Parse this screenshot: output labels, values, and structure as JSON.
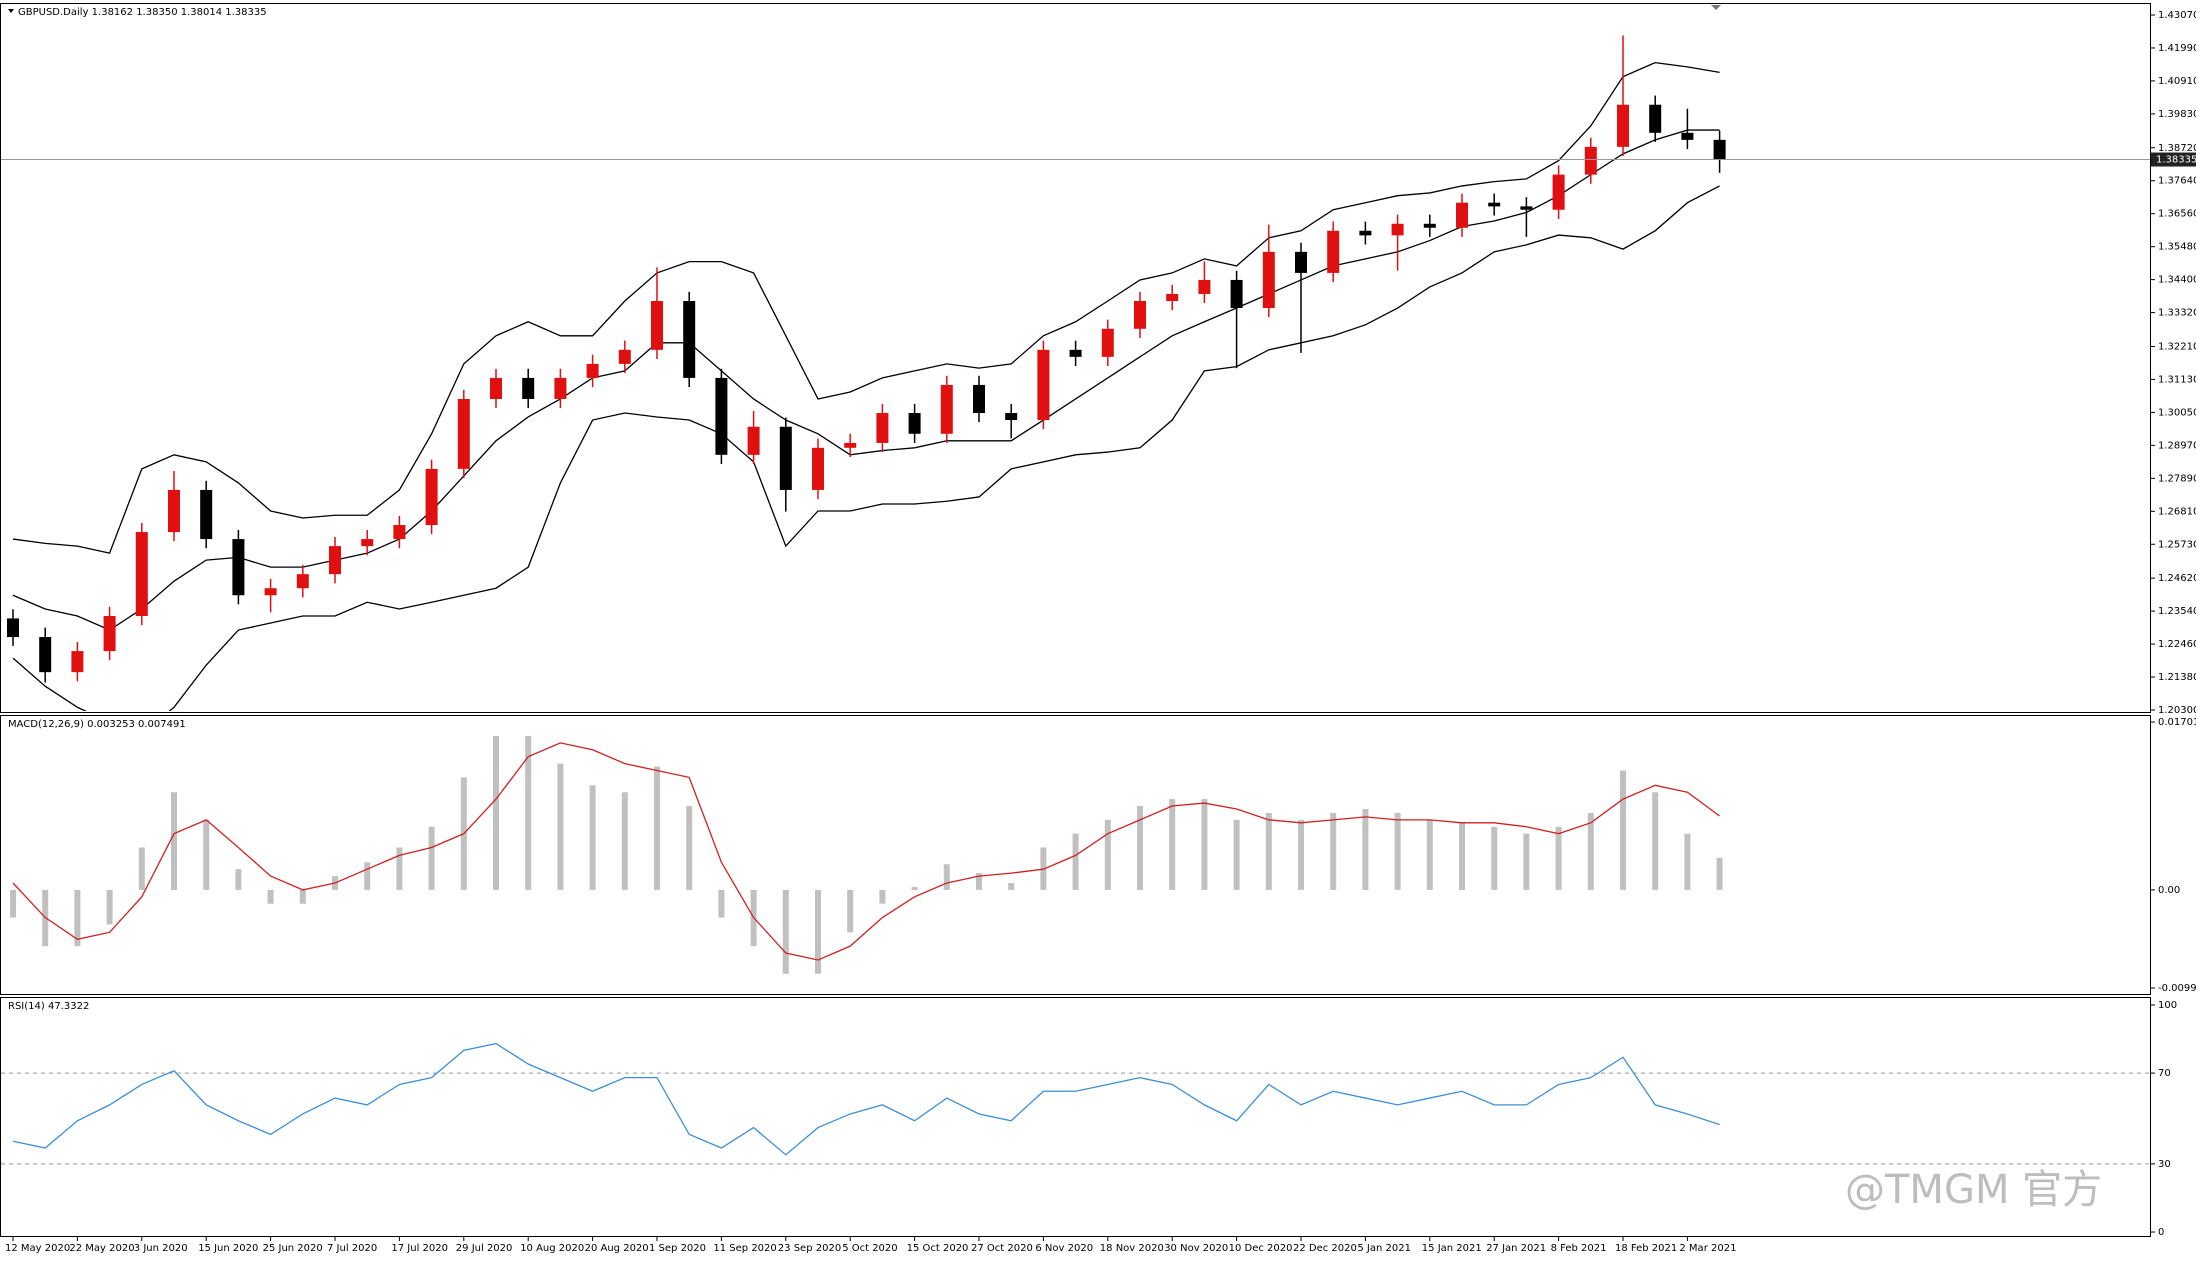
{
  "chart_data": [
    {
      "type": "candlestick",
      "title": "GBPUSD.Daily  1.38162 1.38350 1.38014 1.38335",
      "categories": [
        "12 May 2020",
        null,
        "22 May 2020",
        null,
        "3 Jun 2020",
        null,
        "15 Jun 2020",
        null,
        "25 Jun 2020",
        null,
        "7 Jul 2020",
        null,
        "17 Jul 2020",
        null,
        "29 Jul 2020",
        null,
        "10 Aug 2020",
        null,
        "20 Aug 2020",
        null,
        "1 Sep 2020",
        null,
        "11 Sep 2020",
        null,
        "23 Sep 2020",
        null,
        "5 Oct 2020",
        null,
        "15 Oct 2020",
        null,
        "27 Oct 2020",
        null,
        "6 Nov 2020",
        null,
        "18 Nov 2020",
        null,
        "30 Nov 2020",
        null,
        "10 Dec 2020",
        null,
        "22 Dec 2020",
        null,
        "5 Jan 2021",
        null,
        "15 Jan 2021",
        null,
        "27 Jan 2021",
        null,
        "8 Feb 2021",
        null,
        "18 Feb 2021",
        null,
        "2 Mar 2021",
        null
      ],
      "open": [
        1.233,
        1.2269,
        1.2154,
        1.2223,
        1.2338,
        1.2613,
        1.2751,
        1.259,
        1.2406,
        1.2429,
        1.2475,
        1.2567,
        1.259,
        1.2636,
        1.282,
        1.3049,
        1.3118,
        1.3049,
        1.3118,
        1.3164,
        1.321,
        1.337,
        1.3118,
        1.2866,
        1.2958,
        1.2751,
        1.2889,
        1.2905,
        1.3003,
        1.2935,
        1.3095,
        1.3003,
        1.298,
        1.321,
        1.3187,
        1.3279,
        1.337,
        1.3393,
        1.3439,
        1.3347,
        1.3531,
        1.3462,
        1.36,
        1.3585,
        1.3623,
        1.361,
        1.3692,
        1.368,
        1.3669,
        1.3784,
        1.3875,
        1.4013,
        1.3921,
        1.3898
      ],
      "high": [
        1.236,
        1.23,
        1.2253,
        1.2368,
        1.2643,
        1.2813,
        1.2781,
        1.262,
        1.2459,
        1.2505,
        1.2597,
        1.262,
        1.2666,
        1.285,
        1.3079,
        1.3148,
        1.3148,
        1.3148,
        1.3194,
        1.324,
        1.348,
        1.34,
        1.3148,
        1.301,
        1.2988,
        1.2919,
        1.2935,
        1.3033,
        1.3033,
        1.3125,
        1.3125,
        1.3033,
        1.324,
        1.324,
        1.3309,
        1.34,
        1.3423,
        1.35,
        1.3469,
        1.362,
        1.3561,
        1.363,
        1.363,
        1.3653,
        1.3653,
        1.3722,
        1.3722,
        1.371,
        1.3814,
        1.3905,
        1.424,
        1.4043,
        1.4,
        1.3928
      ],
      "low": [
        1.224,
        1.212,
        1.2124,
        1.2193,
        1.2308,
        1.2583,
        1.256,
        1.2376,
        1.235,
        1.2399,
        1.2445,
        1.2537,
        1.256,
        1.2606,
        1.279,
        1.3019,
        1.3019,
        1.3019,
        1.3088,
        1.3134,
        1.318,
        1.3088,
        1.2836,
        1.2836,
        1.268,
        1.2721,
        1.2859,
        1.2875,
        1.2905,
        1.2905,
        1.2973,
        1.292,
        1.295,
        1.3157,
        1.3157,
        1.3249,
        1.334,
        1.3363,
        1.315,
        1.3317,
        1.32,
        1.3432,
        1.3555,
        1.347,
        1.358,
        1.358,
        1.365,
        1.358,
        1.3639,
        1.3754,
        1.3845,
        1.3891,
        1.3868,
        1.379
      ],
      "close": [
        1.2269,
        1.2154,
        1.2223,
        1.2338,
        1.2613,
        1.2751,
        1.259,
        1.2406,
        1.2429,
        1.2475,
        1.2567,
        1.259,
        1.2636,
        1.282,
        1.3049,
        1.3118,
        1.3049,
        1.3118,
        1.3164,
        1.321,
        1.337,
        1.3118,
        1.2866,
        1.2958,
        1.2751,
        1.2889,
        1.2905,
        1.3003,
        1.2935,
        1.3095,
        1.3003,
        1.298,
        1.321,
        1.3187,
        1.3279,
        1.337,
        1.3393,
        1.3439,
        1.3347,
        1.3531,
        1.3462,
        1.36,
        1.3585,
        1.3623,
        1.361,
        1.3692,
        1.368,
        1.3669,
        1.3784,
        1.3875,
        1.4013,
        1.3921,
        1.3898,
        1.38335
      ],
      "up_color": "#e01010",
      "down_color": "#000000",
      "bands": [
        {
          "color": "#000000",
          "values": [
            1.259,
            1.2576,
            1.2567,
            1.2544,
            1.282,
            1.2866,
            1.2843,
            1.2774,
            1.2682,
            1.2659,
            1.2668,
            1.2668,
            1.2751,
            1.2935,
            1.3164,
            1.3256,
            1.3302,
            1.3256,
            1.3256,
            1.337,
            1.3462,
            1.3499,
            1.3499,
            1.3462,
            1.3256,
            1.3049,
            1.3072,
            1.3118,
            1.3141,
            1.3164,
            1.315,
            1.3164,
            1.3256,
            1.3302,
            1.337,
            1.3439,
            1.3462,
            1.3508,
            1.3485,
            1.3577,
            1.36,
            1.3669,
            1.3692,
            1.3715,
            1.3724,
            1.3747,
            1.3761,
            1.377,
            1.383,
            1.3944,
            1.4105,
            1.4151,
            1.4137,
            1.4119
          ]
        },
        {
          "color": "#000000",
          "values": [
            1.2406,
            1.2361,
            1.2338,
            1.2292,
            1.2361,
            1.2452,
            1.2521,
            1.253,
            1.2498,
            1.2498,
            1.2521,
            1.2544,
            1.259,
            1.2682,
            1.2797,
            1.2912,
            1.299,
            1.3049,
            1.3118,
            1.3141,
            1.3233,
            1.3233,
            1.3141,
            1.3049,
            1.298,
            1.2935,
            1.2866,
            1.288,
            1.2889,
            1.2912,
            1.2912,
            1.2912,
            1.298,
            1.3049,
            1.3118,
            1.3187,
            1.3256,
            1.3302,
            1.3347,
            1.3393,
            1.3439,
            1.3485,
            1.3508,
            1.3531,
            1.3568,
            1.3614,
            1.3632,
            1.366,
            1.3715,
            1.3784,
            1.3852,
            1.3898,
            1.393,
            1.393
          ]
        },
        {
          "color": "#000000",
          "values": [
            1.22,
            1.2108,
            1.2039,
            1.199,
            1.195,
            1.2039,
            1.2177,
            1.2292,
            1.2315,
            1.2338,
            1.2338,
            1.2383,
            1.2361,
            1.2383,
            1.2406,
            1.2429,
            1.2498,
            1.2774,
            1.298,
            1.3003,
            1.299,
            1.298,
            1.2935,
            1.2843,
            1.2567,
            1.2682,
            1.2682,
            1.2705,
            1.2705,
            1.2714,
            1.2728,
            1.282,
            1.2843,
            1.2866,
            1.2875,
            1.2889,
            1.298,
            1.3141,
            1.3155,
            1.321,
            1.3233,
            1.3256,
            1.3292,
            1.3347,
            1.3416,
            1.3462,
            1.3531,
            1.3554,
            1.3586,
            1.3577,
            1.354,
            1.36,
            1.3692,
            1.3747
          ]
        }
      ],
      "current_price": {
        "value": 1.38335,
        "label": "1.38335"
      },
      "ylim": [
        1.203,
        1.4307
      ],
      "yticks": [
        {
          "value": 1.4307,
          "label": "1.43070"
        },
        {
          "value": 1.4199,
          "label": "1.41990"
        },
        {
          "value": 1.4091,
          "label": "1.40910"
        },
        {
          "value": 1.3983,
          "label": "1.39830"
        },
        {
          "value": 1.3872,
          "label": "1.38720"
        },
        {
          "value": 1.3764,
          "label": "1.37640"
        },
        {
          "value": 1.3656,
          "label": "1.36560"
        },
        {
          "value": 1.3548,
          "label": "1.35480"
        },
        {
          "value": 1.344,
          "label": "1.34400"
        },
        {
          "value": 1.3332,
          "label": "1.33320"
        },
        {
          "value": 1.3221,
          "label": "1.32210"
        },
        {
          "value": 1.3113,
          "label": "1.31130"
        },
        {
          "value": 1.3005,
          "label": "1.30050"
        },
        {
          "value": 1.2897,
          "label": "1.28970"
        },
        {
          "value": 1.2789,
          "label": "1.27890"
        },
        {
          "value": 1.2681,
          "label": "1.26810"
        },
        {
          "value": 1.2573,
          "label": "1.25730"
        },
        {
          "value": 1.2462,
          "label": "1.24620"
        },
        {
          "value": 1.2354,
          "label": "1.23540"
        },
        {
          "value": 1.2246,
          "label": "1.22460"
        },
        {
          "value": 1.2138,
          "label": "1.21380"
        },
        {
          "value": 1.203,
          "label": "1.20300"
        }
      ]
    },
    {
      "type": "macd",
      "title": "MACD(12,26,9) 0.003253 0.007491",
      "series": [
        {
          "color": "#c0c0c0",
          "values": [
            -0.0028,
            -0.0057,
            -0.0057,
            -0.0035,
            0.0043,
            0.0099,
            0.0071,
            0.0021,
            -0.0014,
            -0.0014,
            0.0014,
            0.0028,
            0.0043,
            0.0064,
            0.0114,
            0.0156,
            0.0156,
            0.0128,
            0.0106,
            0.0099,
            0.0125,
            0.0085,
            -0.0028,
            -0.0057,
            -0.0085,
            -0.0085,
            -0.0043,
            -0.0014,
            0.0003,
            0.0026,
            0.0017,
            0.0007,
            0.0043,
            0.0057,
            0.0071,
            0.0085,
            0.0092,
            0.0092,
            0.0071,
            0.0078,
            0.0071,
            0.0078,
            0.0082,
            0.0078,
            0.0071,
            0.0068,
            0.0064,
            0.0057,
            0.0064,
            0.0078,
            0.0121,
            0.0099,
            0.0057,
            0.003253
          ]
        },
        {
          "color": "#d02020",
          "values": [
            0.0007,
            -0.0028,
            -0.005,
            -0.0043,
            -0.0007,
            0.0057,
            0.0071,
            0.0043,
            0.0014,
            0.0,
            0.0007,
            0.0021,
            0.0035,
            0.0043,
            0.0057,
            0.0092,
            0.0135,
            0.0149,
            0.0142,
            0.0128,
            0.0121,
            0.0114,
            0.0028,
            -0.0028,
            -0.0064,
            -0.0071,
            -0.0057,
            -0.0028,
            -0.0007,
            0.0007,
            0.0014,
            0.0017,
            0.0021,
            0.0035,
            0.0057,
            0.0071,
            0.0085,
            0.0088,
            0.0082,
            0.0071,
            0.0068,
            0.0071,
            0.0074,
            0.0071,
            0.0071,
            0.0068,
            0.0068,
            0.0064,
            0.0057,
            0.0068,
            0.0092,
            0.0106,
            0.0099,
            0.007491
          ]
        }
      ],
      "ylim": [
        -0.00994,
        0.017015
      ],
      "yticks": [
        0.017015,
        {
          "value": 0,
          "label": "0.00"
        },
        -0.00994
      ]
    },
    {
      "type": "line",
      "title": "RSI(14) 47.3322",
      "series": [
        {
          "color": "#3c8fd8",
          "values": [
            40,
            37,
            49,
            56,
            65,
            71,
            56,
            49,
            43,
            52,
            59,
            56,
            65,
            68,
            80,
            83,
            74,
            68,
            62,
            68,
            68,
            43,
            37,
            46,
            34,
            46,
            52,
            56,
            49,
            59,
            52,
            49,
            62,
            62,
            65,
            68,
            65,
            56,
            49,
            65,
            56,
            62,
            59,
            56,
            59,
            62,
            56,
            56,
            65,
            68,
            77,
            56,
            52,
            47.3322
          ]
        }
      ],
      "ylim": [
        0,
        100
      ],
      "yticks": [
        100,
        70,
        30,
        0
      ],
      "grid": true
    }
  ],
  "watermark": "@TMGM 官方"
}
